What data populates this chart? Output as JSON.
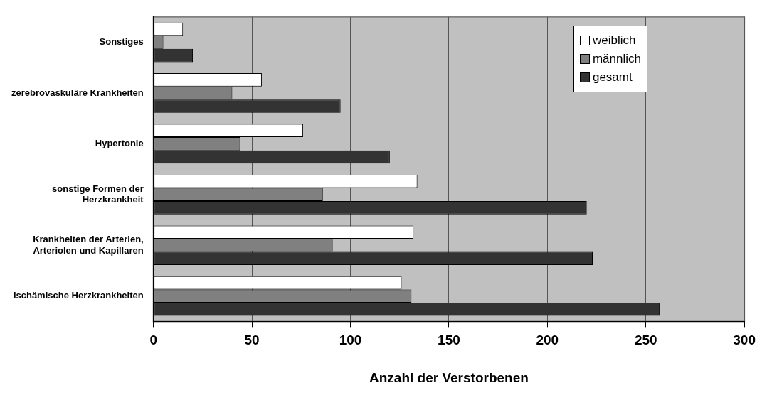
{
  "chart_data": {
    "type": "bar",
    "orientation": "horizontal",
    "xlabel": "Anzahl der Verstorbenen",
    "categories": [
      "Sonstiges",
      "zerebrovaskuläre Krankheiten",
      "Hypertonie",
      "sonstige Formen der\nHerzkrankheit",
      "Krankheiten der Arterien,\nArteriolen und Kapillaren",
      "ischämische Herzkrankheiten"
    ],
    "series": [
      {
        "name": "weiblich",
        "color": "#ffffff",
        "values": [
          15,
          55,
          76,
          134,
          132,
          126
        ]
      },
      {
        "name": "männlich",
        "color": "#808080",
        "values": [
          5,
          40,
          44,
          86,
          91,
          131
        ]
      },
      {
        "name": "gesamt",
        "color": "#333333",
        "values": [
          20,
          95,
          120,
          220,
          223,
          257
        ]
      }
    ],
    "xlim": [
      0,
      300
    ],
    "xticks": [
      0,
      50,
      100,
      150,
      200,
      250,
      300
    ],
    "grid": "x",
    "legend": "top right"
  }
}
